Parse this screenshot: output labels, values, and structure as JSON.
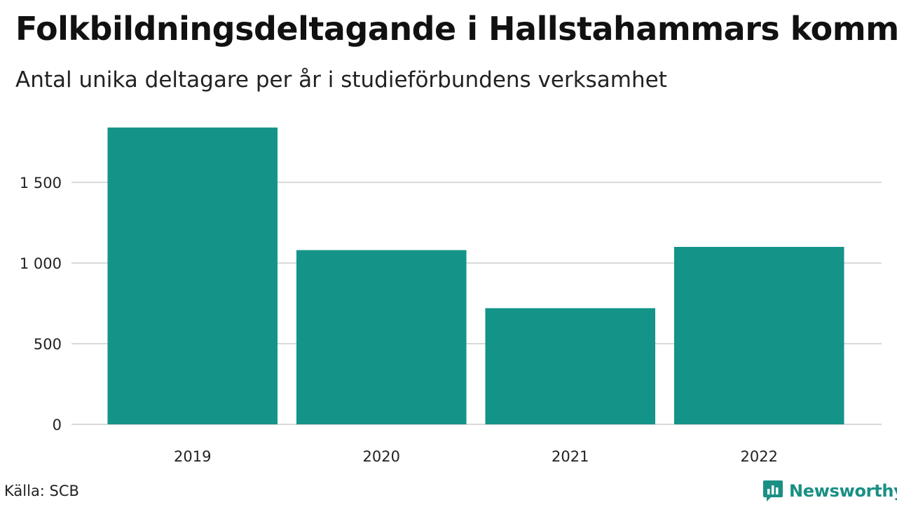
{
  "header": {
    "title": "Folkbildningsdeltagande i Hallstahammars kommun",
    "subtitle": "Antal unika deltagare per år i studieförbundens verksamhet"
  },
  "footer": {
    "source": "Källa: SCB",
    "brand": "Newsworthy",
    "brand_icon": "bar-chart-logo-icon"
  },
  "colors": {
    "bar": "#149488",
    "grid": "#d9d9d9",
    "brand": "#1a8f84"
  },
  "chart_data": {
    "type": "bar",
    "categories": [
      "2019",
      "2020",
      "2021",
      "2022"
    ],
    "values": [
      1840,
      1080,
      720,
      1100
    ],
    "ylim": [
      0,
      1900
    ],
    "yticks": [
      0,
      500,
      1000,
      1500
    ],
    "ytick_labels": [
      "0",
      "500",
      "1 000",
      "1 500"
    ],
    "grid": "horizontal",
    "legend": "none",
    "title": "Folkbildningsdeltagande i Hallstahammars kommun",
    "subtitle": "Antal unika deltagare per år i studieförbundens verksamhet",
    "xlabel": "",
    "ylabel": ""
  }
}
